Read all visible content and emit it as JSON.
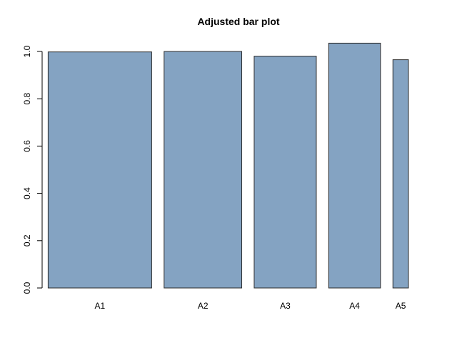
{
  "chart_data": {
    "type": "bar",
    "title": "Adjusted bar plot",
    "xlabel": "",
    "ylabel": "",
    "categories": [
      "A1",
      "A2",
      "A3",
      "A4",
      "A5"
    ],
    "values": [
      0.998,
      1.0,
      0.98,
      1.035,
      0.965
    ],
    "widths": [
      1.0,
      0.75,
      0.6,
      0.5,
      0.15
    ],
    "yticks": [
      0.0,
      0.2,
      0.4,
      0.6,
      0.8,
      1.0
    ],
    "ytick_labels": [
      "0.0",
      "0.2",
      "0.4",
      "0.6",
      "0.8",
      "1.0"
    ],
    "ylim": [
      0,
      1.04
    ],
    "bar_color": "#84a3c2",
    "bar_border_color": "#2b2b2b",
    "grid": false,
    "legend": "none"
  }
}
